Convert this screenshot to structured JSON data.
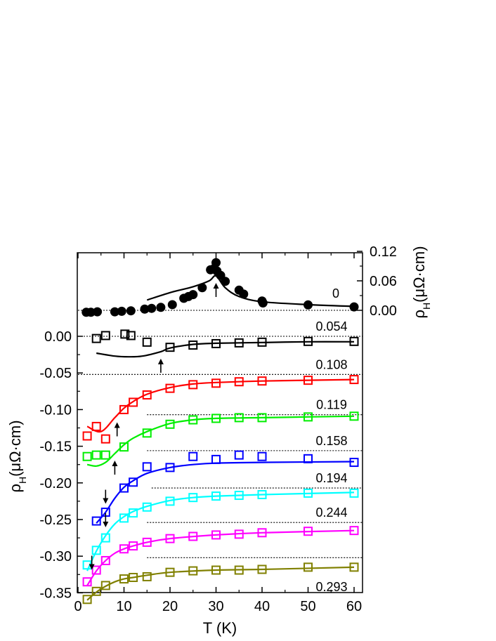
{
  "chart_data": {
    "type": "scatter",
    "xlabel": "T (K)",
    "ylabel_left": "ρH(μΩ·cm)",
    "ylabel_right": "ρH(μΩ·cm)",
    "xlim": [
      0,
      62
    ],
    "ylim_left": [
      -0.375,
      0.105
    ],
    "ylim_right": [
      -0.02,
      0.12
    ],
    "x_ticks": [
      "0",
      "10",
      "20",
      "30",
      "40",
      "50",
      "60"
    ],
    "y_left_ticks": [
      "0.00",
      "-0.05",
      "-0.10",
      "-0.15",
      "-0.20",
      "-0.25",
      "-0.30",
      "-0.35"
    ],
    "y_right_ticks": [
      "0.12",
      "0.06",
      "0.00"
    ],
    "colors": {
      "0": "#000000",
      "0.054": "#000000",
      "0.108": "#ff0000",
      "0.119": "#00ee00",
      "0.158": "#0000ff",
      "0.194": "#00ffff",
      "0.244": "#ff00ff",
      "0.293": "#808000"
    },
    "series": [
      {
        "name": "0",
        "axis": "right",
        "marker": "filled-circle",
        "points": [
          [
            1.8,
            -0.004
          ],
          [
            2.8,
            -0.004
          ],
          [
            4.2,
            -0.003
          ],
          [
            8,
            -0.003
          ],
          [
            9.5,
            -0.002
          ],
          [
            11.5,
            -0.001
          ],
          [
            14.5,
            0.0025
          ],
          [
            16,
            0.004
          ],
          [
            18,
            0.006
          ],
          [
            20.5,
            0.0115
          ],
          [
            23,
            0.0245
          ],
          [
            24,
            0.028
          ],
          [
            25,
            0.032
          ],
          [
            27,
            0.046
          ],
          [
            28.8,
            0.0825
          ],
          [
            29.5,
            0.0845
          ],
          [
            30,
            0.097
          ],
          [
            30.2,
            0.08
          ],
          [
            31,
            0.071
          ],
          [
            32,
            0.059
          ],
          [
            35,
            0.041
          ],
          [
            36,
            0.033
          ],
          [
            40,
            0.019
          ],
          [
            40.2,
            0.015
          ],
          [
            50,
            0.011
          ],
          [
            60,
            0.007
          ]
        ],
        "fit": [
          [
            15,
            0.021
          ],
          [
            20,
            0.036
          ],
          [
            25,
            0.048
          ],
          [
            28.5,
            0.06
          ],
          [
            30,
            0.07
          ],
          [
            32,
            0.046
          ],
          [
            35,
            0.028
          ],
          [
            40,
            0.0175
          ],
          [
            50,
            0.0115
          ],
          [
            60,
            0.008
          ]
        ],
        "baseline": 0.0,
        "baseline_from": 0,
        "transition_T": 30,
        "arrow_dir": "up"
      },
      {
        "name": "0.054",
        "marker": "open-square",
        "points": [
          [
            4,
            -0.003
          ],
          [
            6,
            0.001
          ],
          [
            10.2,
            0.003
          ],
          [
            11.5,
            0.001
          ],
          [
            15,
            -0.008
          ],
          [
            20,
            -0.015
          ],
          [
            25,
            -0.012
          ],
          [
            30,
            -0.01
          ],
          [
            35,
            -0.009
          ],
          [
            40,
            -0.008
          ],
          [
            50,
            -0.007
          ],
          [
            60,
            -0.007
          ]
        ],
        "fit": [
          [
            4,
            -0.023
          ],
          [
            8,
            -0.027
          ],
          [
            11,
            -0.028
          ],
          [
            14,
            -0.027
          ],
          [
            18,
            -0.021
          ],
          [
            20,
            -0.016
          ],
          [
            25,
            -0.011
          ],
          [
            30,
            -0.0095
          ],
          [
            40,
            -0.0085
          ],
          [
            50,
            -0.0075
          ],
          [
            60,
            -0.0075
          ]
        ],
        "baseline": 0.0,
        "baseline_from": 0,
        "transition_T": 18,
        "arrow_dir": "up"
      },
      {
        "name": "0.108",
        "marker": "open-square",
        "points": [
          [
            2,
            -0.136
          ],
          [
            4,
            -0.123
          ],
          [
            6,
            -0.14
          ],
          [
            10,
            -0.1
          ],
          [
            12,
            -0.09
          ],
          [
            15,
            -0.08
          ],
          [
            20,
            -0.071
          ],
          [
            25,
            -0.066
          ],
          [
            30,
            -0.064
          ],
          [
            35,
            -0.062
          ],
          [
            40,
            -0.061
          ],
          [
            50,
            -0.06
          ],
          [
            60,
            -0.059
          ]
        ],
        "fit": [
          [
            2,
            -0.123
          ],
          [
            5,
            -0.13
          ],
          [
            8,
            -0.111
          ],
          [
            10,
            -0.098
          ],
          [
            12,
            -0.089
          ],
          [
            15,
            -0.079
          ],
          [
            20,
            -0.07
          ],
          [
            25,
            -0.065
          ],
          [
            30,
            -0.063
          ],
          [
            40,
            -0.061
          ],
          [
            50,
            -0.06
          ],
          [
            60,
            -0.059
          ]
        ],
        "baseline": -0.052,
        "baseline_from": 0,
        "transition_T": 8.5,
        "arrow_dir": "up"
      },
      {
        "name": "0.119",
        "marker": "open-square",
        "points": [
          [
            2,
            -0.164
          ],
          [
            4,
            -0.162
          ],
          [
            6,
            -0.162
          ],
          [
            10,
            -0.151
          ],
          [
            15,
            -0.132
          ],
          [
            20,
            -0.12
          ],
          [
            25,
            -0.114
          ],
          [
            30,
            -0.112
          ],
          [
            35,
            -0.111
          ],
          [
            40,
            -0.111
          ],
          [
            50,
            -0.11
          ],
          [
            60,
            -0.109
          ]
        ],
        "fit": [
          [
            2,
            -0.175
          ],
          [
            4,
            -0.177
          ],
          [
            6,
            -0.172
          ],
          [
            8,
            -0.16
          ],
          [
            10,
            -0.148
          ],
          [
            12,
            -0.139
          ],
          [
            15,
            -0.13
          ],
          [
            20,
            -0.119
          ],
          [
            25,
            -0.114
          ],
          [
            30,
            -0.112
          ],
          [
            40,
            -0.111
          ],
          [
            50,
            -0.11
          ],
          [
            60,
            -0.109
          ]
        ],
        "baseline": -0.107,
        "baseline_from": 15,
        "transition_T": 8,
        "arrow_dir": "up"
      },
      {
        "name": "0.158",
        "marker": "open-square",
        "points": [
          [
            4,
            -0.252
          ],
          [
            6,
            -0.24
          ],
          [
            10,
            -0.207
          ],
          [
            12,
            -0.199
          ],
          [
            15,
            -0.178
          ],
          [
            20,
            -0.179
          ],
          [
            25,
            -0.164
          ],
          [
            30,
            -0.168
          ],
          [
            35,
            -0.162
          ],
          [
            40,
            -0.164
          ],
          [
            50,
            -0.167
          ],
          [
            60,
            -0.172
          ]
        ],
        "fit": [
          [
            4,
            -0.255
          ],
          [
            6,
            -0.24
          ],
          [
            8,
            -0.221
          ],
          [
            10,
            -0.206
          ],
          [
            12,
            -0.197
          ],
          [
            15,
            -0.187
          ],
          [
            20,
            -0.179
          ],
          [
            25,
            -0.175
          ],
          [
            30,
            -0.173
          ],
          [
            40,
            -0.172
          ],
          [
            60,
            -0.171
          ]
        ],
        "baseline": -0.156,
        "baseline_from": 15,
        "transition_T": 6,
        "arrow_dir": "down"
      },
      {
        "name": "0.194",
        "marker": "open-square",
        "points": [
          [
            2,
            -0.312
          ],
          [
            4,
            -0.292
          ],
          [
            6,
            -0.275
          ],
          [
            10,
            -0.248
          ],
          [
            12,
            -0.241
          ],
          [
            15,
            -0.233
          ],
          [
            20,
            -0.225
          ],
          [
            25,
            -0.22
          ],
          [
            30,
            -0.218
          ],
          [
            35,
            -0.217
          ],
          [
            40,
            -0.216
          ],
          [
            50,
            -0.214
          ],
          [
            60,
            -0.214
          ]
        ],
        "fit": [
          [
            2,
            -0.32
          ],
          [
            4,
            -0.293
          ],
          [
            6,
            -0.272
          ],
          [
            8,
            -0.256
          ],
          [
            10,
            -0.246
          ],
          [
            12,
            -0.239
          ],
          [
            15,
            -0.232
          ],
          [
            20,
            -0.224
          ],
          [
            25,
            -0.22
          ],
          [
            30,
            -0.218
          ],
          [
            40,
            -0.216
          ],
          [
            60,
            -0.213
          ]
        ],
        "baseline": -0.207,
        "baseline_from": 16,
        "transition_T": 6,
        "arrow_dir": "down"
      },
      {
        "name": "0.244",
        "marker": "open-square",
        "points": [
          [
            2,
            -0.335
          ],
          [
            4,
            -0.319
          ],
          [
            6,
            -0.306
          ],
          [
            10,
            -0.29
          ],
          [
            12,
            -0.286
          ],
          [
            15,
            -0.281
          ],
          [
            20,
            -0.276
          ],
          [
            25,
            -0.273
          ],
          [
            30,
            -0.271
          ],
          [
            35,
            -0.27
          ],
          [
            40,
            -0.268
          ],
          [
            50,
            -0.266
          ],
          [
            60,
            -0.265
          ]
        ],
        "fit": [
          [
            2,
            -0.34
          ],
          [
            4,
            -0.32
          ],
          [
            6,
            -0.306
          ],
          [
            8,
            -0.296
          ],
          [
            10,
            -0.29
          ],
          [
            12,
            -0.286
          ],
          [
            15,
            -0.281
          ],
          [
            20,
            -0.276
          ],
          [
            30,
            -0.271
          ],
          [
            40,
            -0.268
          ],
          [
            60,
            -0.265
          ]
        ],
        "baseline": -0.254,
        "baseline_from": 15,
        "transition_T": 3,
        "arrow_dir": "down"
      },
      {
        "name": "0.293",
        "marker": "open-square",
        "points": [
          [
            2,
            -0.359
          ],
          [
            4,
            -0.348
          ],
          [
            6,
            -0.34
          ],
          [
            10,
            -0.331
          ],
          [
            12,
            -0.329
          ],
          [
            15,
            -0.328
          ],
          [
            20,
            -0.322
          ],
          [
            25,
            -0.32
          ],
          [
            30,
            -0.319
          ],
          [
            35,
            -0.319
          ],
          [
            40,
            -0.318
          ],
          [
            50,
            -0.315
          ],
          [
            60,
            -0.315
          ]
        ],
        "fit": [
          [
            2,
            -0.36
          ],
          [
            4,
            -0.349
          ],
          [
            6,
            -0.341
          ],
          [
            8,
            -0.335
          ],
          [
            10,
            -0.331
          ],
          [
            12,
            -0.329
          ],
          [
            15,
            -0.326
          ],
          [
            20,
            -0.322
          ],
          [
            30,
            -0.319
          ],
          [
            40,
            -0.318
          ],
          [
            60,
            -0.315
          ]
        ],
        "baseline": -0.302,
        "baseline_from": 15,
        "transition_T": null,
        "arrow_dir": null
      }
    ],
    "grid": false,
    "legend": "curve labels placed beside each curve at right"
  }
}
